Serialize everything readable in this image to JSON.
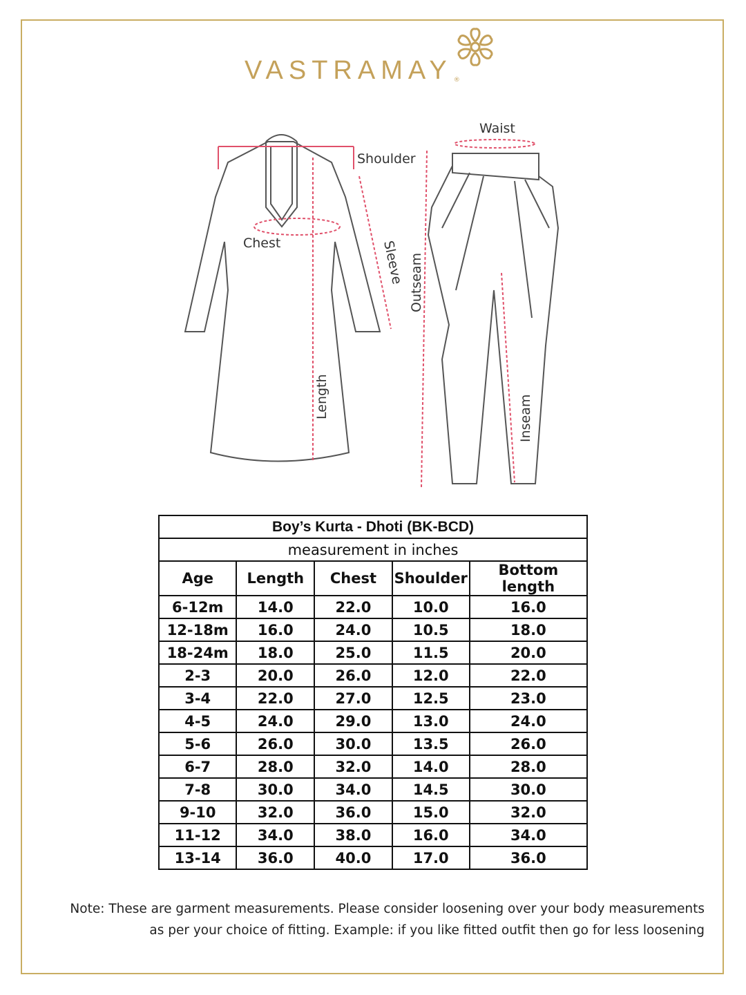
{
  "brand": {
    "name": "VASTRAMAY",
    "registered": "®",
    "color": "#c4a15a"
  },
  "diagram": {
    "kurta_labels": {
      "shoulder": "Shoulder",
      "chest": "Chest",
      "sleeve": "Sleeve",
      "length": "Length"
    },
    "dhoti_labels": {
      "waist": "Waist",
      "outseam": "Outseam",
      "inseam": "Inseam"
    },
    "measure_color": "#e0506a"
  },
  "table": {
    "title": "Boy’s Kurta - Dhoti (BK-BCD)",
    "subtitle": "measurement in inches",
    "headers": [
      "Age",
      "Length",
      "Chest",
      "Shoulder",
      "Bottom length"
    ],
    "rows": [
      [
        "6-12m",
        "14.0",
        "22.0",
        "10.0",
        "16.0"
      ],
      [
        "12-18m",
        "16.0",
        "24.0",
        "10.5",
        "18.0"
      ],
      [
        "18-24m",
        "18.0",
        "25.0",
        "11.5",
        "20.0"
      ],
      [
        "2-3",
        "20.0",
        "26.0",
        "12.0",
        "22.0"
      ],
      [
        "3-4",
        "22.0",
        "27.0",
        "12.5",
        "23.0"
      ],
      [
        "4-5",
        "24.0",
        "29.0",
        "13.0",
        "24.0"
      ],
      [
        "5-6",
        "26.0",
        "30.0",
        "13.5",
        "26.0"
      ],
      [
        "6-7",
        "28.0",
        "32.0",
        "14.0",
        "28.0"
      ],
      [
        "7-8",
        "30.0",
        "34.0",
        "14.5",
        "30.0"
      ],
      [
        "9-10",
        "32.0",
        "36.0",
        "15.0",
        "32.0"
      ],
      [
        "11-12",
        "34.0",
        "38.0",
        "16.0",
        "34.0"
      ],
      [
        "13-14",
        "36.0",
        "40.0",
        "17.0",
        "36.0"
      ]
    ]
  },
  "note": {
    "line1": "Note: These are garment measurements. Please consider loosening over your body measurements",
    "line2": "as per your choice of fitting. Example: if you like fitted outfit then go for less loosening"
  }
}
